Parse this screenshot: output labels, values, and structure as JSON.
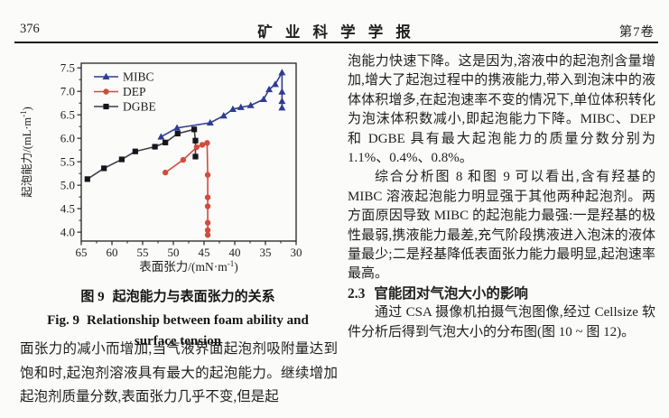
{
  "header": {
    "page_number": "376",
    "journal_title": "矿 业 科 学 学 报",
    "volume": "第7卷"
  },
  "figure": {
    "caption_zh_label": "图 9",
    "caption_zh_text": "起泡能力与表面张力的关系",
    "caption_en_label": "Fig. 9",
    "caption_en_text": "Relationship between foam ability and surface tension"
  },
  "left_column": {
    "paragraph": "面张力的减小而增加,当气液界面起泡剂吸附量达到饱和时,起泡剂溶液具有最大的起泡能力。继续增加起泡剂质量分数,表面张力几乎不变,但是起"
  },
  "right_column": {
    "para1": "泡能力快速下降。这是因为,溶液中的起泡剂含量增加,增大了起泡过程中的携液能力,带入到泡沫中的液体体积增多,在起泡速率不变的情况下,单位体积转化为泡沫体积数减小,即起泡能力下降。MIBC、DEP 和 DGBE 具有最大起泡能力的质量分数分别为 1.1%、0.4%、0.8%。",
    "para2": "综合分析图 8 和图 9 可以看出,含有羟基的 MIBC 溶液起泡能力明显强于其他两种起泡剂。两方面原因导致 MIBC 的起泡能力最强:一是羟基的极性最弱,携液能力最差,充气阶段携液进入泡沫的液体量最少;二是羟基降低表面张力能力最明显,起泡速率最高。",
    "section_number": "2.3",
    "section_title": "官能团对气泡大小的影响",
    "para3": "通过 CSA 摄像机拍摄气泡图像,经过 Cellsize 软件分析后得到气泡大小的分布图(图 10 ~ 图 12)。"
  },
  "chart_data": {
    "type": "line",
    "title": "",
    "xlabel": "表面张力/(mN·m⁻¹)",
    "ylabel": "起泡能力/(mL·m⁻¹)",
    "x_axis_reversed": true,
    "xlim": [
      65,
      30
    ],
    "ylim": [
      3.81,
      7.6
    ],
    "xticks": [
      65,
      60,
      55,
      50,
      45,
      40,
      35,
      30
    ],
    "yticks": [
      4.0,
      4.5,
      5.0,
      5.5,
      6.0,
      6.5,
      7.0,
      7.5
    ],
    "grid": false,
    "legend_position": "upper-left",
    "series": [
      {
        "name": "MIBC",
        "color": "#2e3d93",
        "marker": "triangle",
        "points": [
          [
            52,
            6.03
          ],
          [
            49.4,
            6.22
          ],
          [
            44,
            6.33
          ],
          [
            41.8,
            6.48
          ],
          [
            40.3,
            6.62
          ],
          [
            39,
            6.66
          ],
          [
            37.4,
            6.7
          ],
          [
            35.3,
            6.83
          ],
          [
            34.4,
            7.04
          ],
          [
            33.4,
            7.15
          ],
          [
            32.3,
            7.4
          ],
          [
            32.3,
            6.99
          ],
          [
            32.3,
            6.79
          ],
          [
            32.3,
            6.65
          ]
        ]
      },
      {
        "name": "DEP",
        "color": "#d44a3d",
        "marker": "circle",
        "points": [
          [
            51.3,
            5.27
          ],
          [
            48.4,
            5.54
          ],
          [
            46.2,
            5.81
          ],
          [
            45.3,
            5.86
          ],
          [
            44.5,
            5.9
          ],
          [
            44.4,
            5.22
          ],
          [
            44.4,
            4.74
          ],
          [
            44.4,
            4.55
          ],
          [
            44.4,
            4.2
          ],
          [
            44.4,
            4.04
          ],
          [
            44.4,
            3.94
          ]
        ]
      },
      {
        "name": "DGBE",
        "color": "#3c3c49",
        "marker": "square",
        "marker_color": "#15151c",
        "points": [
          [
            64,
            5.13
          ],
          [
            61.3,
            5.36
          ],
          [
            58.4,
            5.55
          ],
          [
            56.2,
            5.72
          ],
          [
            53,
            5.82
          ],
          [
            51.3,
            5.91
          ],
          [
            49.3,
            6.1
          ],
          [
            46.6,
            6.19
          ],
          [
            46.4,
            5.95
          ],
          [
            46.4,
            5.61
          ]
        ]
      }
    ]
  }
}
